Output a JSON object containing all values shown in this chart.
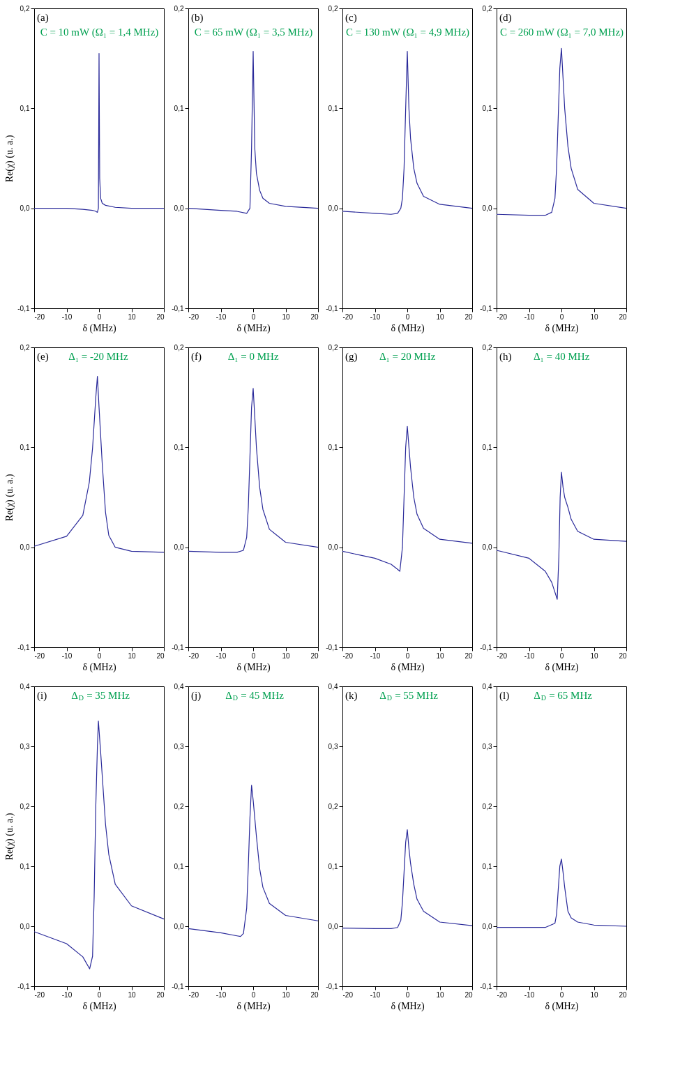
{
  "chart_data": [
    {
      "type": "line",
      "annotations": [
        "(a)",
        "C = 10 mW (Ω₁ = 1,4 MHz)"
      ],
      "xlabel": "δ (MHz)",
      "ylabel": "Re(χ) (u. a.)",
      "xlim": [
        -20,
        20
      ],
      "xticks": [
        -20,
        -10,
        0,
        10,
        20
      ],
      "ylim": [
        -0.1,
        0.2
      ],
      "yticks": [
        {
          "value": -0.1,
          "label": "-0,1"
        },
        {
          "value": 0.0,
          "label": "0,0"
        },
        {
          "value": 0.1,
          "label": "0,1"
        },
        {
          "value": 0.2,
          "label": "0,2"
        }
      ],
      "x": [
        -20,
        -10,
        -5,
        -2,
        -1,
        -0.5,
        -0.2,
        0,
        0.2,
        0.5,
        1,
        2,
        5,
        10,
        20
      ],
      "series": [
        {
          "color": "#2a2a9a",
          "values": [
            0,
            0,
            -0.001,
            -0.002,
            -0.003,
            -0.004,
            0.0,
            0.155,
            0.03,
            0.01,
            0.005,
            0.003,
            0.001,
            0,
            0
          ]
        }
      ]
    },
    {
      "type": "line",
      "annotations": [
        "(b)",
        "C = 65 mW (Ω₁ = 3,5 MHz)"
      ],
      "xlabel": "δ (MHz)",
      "xlim": [
        -20,
        20
      ],
      "xticks": [
        -20,
        -10,
        0,
        10,
        20
      ],
      "ylim": [
        -0.1,
        0.2
      ],
      "yticks": [
        {
          "value": -0.1,
          "label": "-0,1"
        },
        {
          "value": 0.0,
          "label": "0,0"
        },
        {
          "value": 0.1,
          "label": "0,1"
        },
        {
          "value": 0.2,
          "label": "0,2"
        }
      ],
      "x": [
        -20,
        -10,
        -5,
        -2,
        -1,
        -0.5,
        0,
        0.5,
        1,
        2,
        3,
        5,
        10,
        20
      ],
      "series": [
        {
          "color": "#2a2a9a",
          "values": [
            0,
            -0.002,
            -0.003,
            -0.005,
            0.0,
            0.06,
            0.157,
            0.06,
            0.035,
            0.018,
            0.01,
            0.005,
            0.002,
            0
          ]
        }
      ]
    },
    {
      "type": "line",
      "annotations": [
        "(c)",
        "C = 130 mW (Ω₁ = 4,9 MHz)"
      ],
      "xlabel": "δ (MHz)",
      "xlim": [
        -20,
        20
      ],
      "xticks": [
        -20,
        -10,
        0,
        10,
        20
      ],
      "ylim": [
        -0.1,
        0.2
      ],
      "yticks": [
        {
          "value": -0.1,
          "label": "-0,1"
        },
        {
          "value": 0.0,
          "label": "0,0"
        },
        {
          "value": 0.1,
          "label": "0,1"
        },
        {
          "value": 0.2,
          "label": "0,2"
        }
      ],
      "x": [
        -20,
        -10,
        -5,
        -3,
        -2,
        -1.5,
        -1,
        -0.5,
        0,
        0.5,
        1,
        2,
        3,
        5,
        10,
        20
      ],
      "series": [
        {
          "color": "#2a2a9a",
          "values": [
            -0.003,
            -0.005,
            -0.006,
            -0.005,
            0.0,
            0.01,
            0.04,
            0.1,
            0.157,
            0.1,
            0.07,
            0.04,
            0.025,
            0.012,
            0.004,
            0.0
          ]
        }
      ]
    },
    {
      "type": "line",
      "annotations": [
        "(d)",
        "C = 260 mW (Ω₁ = 7,0 MHz)"
      ],
      "xlabel": "δ (MHz)",
      "xlim": [
        -20,
        20
      ],
      "xticks": [
        -20,
        -10,
        0,
        10,
        20
      ],
      "ylim": [
        -0.1,
        0.2
      ],
      "yticks": [
        {
          "value": -0.1,
          "label": "-0,1"
        },
        {
          "value": 0.0,
          "label": "0,0"
        },
        {
          "value": 0.1,
          "label": "0,1"
        },
        {
          "value": 0.2,
          "label": "0,2"
        }
      ],
      "x": [
        -20,
        -10,
        -5,
        -3,
        -2,
        -1.5,
        -1,
        -0.5,
        0,
        0.5,
        1,
        2,
        3,
        5,
        10,
        20
      ],
      "series": [
        {
          "color": "#2a2a9a",
          "values": [
            -0.006,
            -0.007,
            -0.007,
            -0.004,
            0.01,
            0.04,
            0.09,
            0.14,
            0.16,
            0.13,
            0.1,
            0.062,
            0.04,
            0.019,
            0.005,
            0.0
          ]
        }
      ]
    },
    {
      "type": "line",
      "annotations": [
        "(e)",
        "Δ₁ = -20 MHz"
      ],
      "xlabel": "δ (MHz)",
      "ylabel": "Re(χ) (u. a.)",
      "xlim": [
        -20,
        20
      ],
      "xticks": [
        -20,
        -10,
        0,
        10,
        20
      ],
      "ylim": [
        -0.1,
        0.2
      ],
      "yticks": [
        {
          "value": -0.1,
          "label": "-0,1"
        },
        {
          "value": 0.0,
          "label": "0,0"
        },
        {
          "value": 0.1,
          "label": "0,1"
        },
        {
          "value": 0.2,
          "label": "0,2"
        }
      ],
      "x": [
        -20,
        -10,
        -5,
        -3,
        -2,
        -1,
        -0.5,
        0,
        1,
        2,
        3,
        5,
        10,
        20
      ],
      "series": [
        {
          "color": "#2a2a9a",
          "values": [
            0.001,
            0.011,
            0.032,
            0.065,
            0.099,
            0.15,
            0.171,
            0.14,
            0.083,
            0.035,
            0.012,
            0.0,
            -0.004,
            -0.005
          ]
        }
      ]
    },
    {
      "type": "line",
      "annotations": [
        "(f)",
        "Δ₁ = 0 MHz"
      ],
      "xlabel": "δ (MHz)",
      "xlim": [
        -20,
        20
      ],
      "xticks": [
        -20,
        -10,
        0,
        10,
        20
      ],
      "ylim": [
        -0.1,
        0.2
      ],
      "yticks": [
        {
          "value": -0.1,
          "label": "-0,1"
        },
        {
          "value": 0.0,
          "label": "0,0"
        },
        {
          "value": 0.1,
          "label": "0,1"
        },
        {
          "value": 0.2,
          "label": "0,2"
        }
      ],
      "x": [
        -20,
        -10,
        -5,
        -3,
        -2,
        -1.5,
        -1,
        -0.5,
        0,
        0.5,
        1,
        2,
        3,
        5,
        10,
        20
      ],
      "series": [
        {
          "color": "#2a2a9a",
          "values": [
            -0.004,
            -0.005,
            -0.005,
            -0.003,
            0.01,
            0.04,
            0.09,
            0.14,
            0.159,
            0.13,
            0.1,
            0.06,
            0.038,
            0.018,
            0.005,
            0.0
          ]
        }
      ]
    },
    {
      "type": "line",
      "annotations": [
        "(g)",
        "Δ₁ = 20 MHz"
      ],
      "xlabel": "δ (MHz)",
      "xlim": [
        -20,
        20
      ],
      "xticks": [
        -20,
        -10,
        0,
        10,
        20
      ],
      "ylim": [
        -0.1,
        0.2
      ],
      "yticks": [
        {
          "value": -0.1,
          "label": "-0,1"
        },
        {
          "value": 0.0,
          "label": "0,0"
        },
        {
          "value": 0.1,
          "label": "0,1"
        },
        {
          "value": 0.2,
          "label": "0,2"
        }
      ],
      "x": [
        -20,
        -10,
        -5,
        -3,
        -2.3,
        -1.5,
        -1,
        -0.5,
        0,
        1,
        2,
        3,
        5,
        10,
        20
      ],
      "series": [
        {
          "color": "#2a2a9a",
          "values": [
            -0.004,
            -0.011,
            -0.017,
            -0.022,
            -0.024,
            0.0,
            0.05,
            0.1,
            0.121,
            0.08,
            0.05,
            0.033,
            0.019,
            0.008,
            0.004
          ]
        }
      ]
    },
    {
      "type": "line",
      "annotations": [
        "(h)",
        "Δ₁ = 40 MHz"
      ],
      "xlabel": "δ (MHz)",
      "xlim": [
        -20,
        20
      ],
      "xticks": [
        -20,
        -10,
        0,
        10,
        20
      ],
      "ylim": [
        -0.1,
        0.2
      ],
      "yticks": [
        {
          "value": -0.1,
          "label": "-0,1"
        },
        {
          "value": 0.0,
          "label": "0,0"
        },
        {
          "value": 0.1,
          "label": "0,1"
        },
        {
          "value": 0.2,
          "label": "0,2"
        }
      ],
      "x": [
        -20,
        -10,
        -5,
        -3,
        -2,
        -1.3,
        -0.8,
        -0.4,
        0,
        0.5,
        1,
        2,
        3,
        5,
        10,
        20
      ],
      "series": [
        {
          "color": "#2a2a9a",
          "values": [
            -0.003,
            -0.011,
            -0.024,
            -0.035,
            -0.045,
            -0.052,
            -0.01,
            0.05,
            0.075,
            0.06,
            0.05,
            0.04,
            0.028,
            0.016,
            0.008,
            0.006
          ]
        }
      ]
    },
    {
      "type": "line",
      "annotations": [
        "(i)",
        "Δ$_{D}$ = 35 MHz"
      ],
      "xlabel": "δ (MHz)",
      "ylabel": "Re(χ) (u. a.)",
      "xlim": [
        -20,
        20
      ],
      "xticks": [
        -20,
        -10,
        0,
        10,
        20
      ],
      "ylim": [
        -0.1,
        0.4
      ],
      "yticks": [
        {
          "value": -0.1,
          "label": "-0,1"
        },
        {
          "value": 0.0,
          "label": "0,0"
        },
        {
          "value": 0.1,
          "label": "0,1"
        },
        {
          "value": 0.2,
          "label": "0,2"
        },
        {
          "value": 0.3,
          "label": "0,3"
        },
        {
          "value": 0.4,
          "label": "0,4"
        }
      ],
      "x": [
        -20,
        -10,
        -5,
        -2.9,
        -2,
        -1.5,
        -1,
        -0.5,
        -0.2,
        0.5,
        1,
        2,
        3,
        5,
        10,
        20
      ],
      "series": [
        {
          "color": "#2a2a9a",
          "values": [
            -0.009,
            -0.029,
            -0.051,
            -0.071,
            -0.05,
            0.05,
            0.2,
            0.3,
            0.342,
            0.29,
            0.25,
            0.17,
            0.12,
            0.07,
            0.034,
            0.012
          ]
        }
      ]
    },
    {
      "type": "line",
      "annotations": [
        "(j)",
        "Δ$_{D}$ = 45 MHz"
      ],
      "xlabel": "δ (MHz)",
      "xlim": [
        -20,
        20
      ],
      "xticks": [
        -20,
        -10,
        0,
        10,
        20
      ],
      "ylim": [
        -0.1,
        0.4
      ],
      "yticks": [
        {
          "value": -0.1,
          "label": "-0,1"
        },
        {
          "value": 0.0,
          "label": "0,0"
        },
        {
          "value": 0.1,
          "label": "0,1"
        },
        {
          "value": 0.2,
          "label": "0,2"
        },
        {
          "value": 0.3,
          "label": "0,3"
        },
        {
          "value": 0.4,
          "label": "0,4"
        }
      ],
      "x": [
        -20,
        -10,
        -5,
        -3.9,
        -3,
        -2,
        -1.5,
        -1,
        -0.5,
        0,
        1,
        2,
        3,
        5,
        10,
        20
      ],
      "series": [
        {
          "color": "#2a2a9a",
          "values": [
            -0.004,
            -0.011,
            -0.016,
            -0.017,
            -0.012,
            0.03,
            0.1,
            0.18,
            0.235,
            0.21,
            0.15,
            0.096,
            0.065,
            0.038,
            0.018,
            0.009
          ]
        }
      ]
    },
    {
      "type": "line",
      "annotations": [
        "(k)",
        "Δ$_{D}$ = 55 MHz"
      ],
      "xlabel": "δ (MHz)",
      "xlim": [
        -20,
        20
      ],
      "xticks": [
        -20,
        -10,
        0,
        10,
        20
      ],
      "ylim": [
        -0.1,
        0.4
      ],
      "yticks": [
        {
          "value": -0.1,
          "label": "-0,1"
        },
        {
          "value": 0.0,
          "label": "0,0"
        },
        {
          "value": 0.1,
          "label": "0,1"
        },
        {
          "value": 0.2,
          "label": "0,2"
        },
        {
          "value": 0.3,
          "label": "0,3"
        },
        {
          "value": 0.4,
          "label": "0,4"
        }
      ],
      "x": [
        -20,
        -10,
        -5,
        -3,
        -2,
        -1.5,
        -1,
        -0.5,
        0,
        0.5,
        1,
        2,
        3,
        5,
        10,
        20
      ],
      "series": [
        {
          "color": "#2a2a9a",
          "values": [
            -0.003,
            -0.004,
            -0.004,
            -0.002,
            0.01,
            0.04,
            0.09,
            0.14,
            0.161,
            0.13,
            0.105,
            0.07,
            0.045,
            0.025,
            0.007,
            0.001
          ]
        }
      ]
    },
    {
      "type": "line",
      "annotations": [
        "(l)",
        "Δ$_{D}$ = 65 MHz"
      ],
      "xlabel": "δ (MHz)",
      "xlim": [
        -20,
        20
      ],
      "xticks": [
        -20,
        -10,
        0,
        10,
        20
      ],
      "ylim": [
        -0.1,
        0.4
      ],
      "yticks": [
        {
          "value": -0.1,
          "label": "-0,1"
        },
        {
          "value": 0.0,
          "label": "0,0"
        },
        {
          "value": 0.1,
          "label": "0,1"
        },
        {
          "value": 0.2,
          "label": "0,2"
        },
        {
          "value": 0.3,
          "label": "0,3"
        },
        {
          "value": 0.4,
          "label": "0,4"
        }
      ],
      "x": [
        -20,
        -10,
        -5,
        -2,
        -1.5,
        -1,
        -0.5,
        0,
        0.5,
        1,
        2,
        3,
        5,
        10,
        20
      ],
      "series": [
        {
          "color": "#2a2a9a",
          "values": [
            -0.002,
            -0.002,
            -0.002,
            0.005,
            0.02,
            0.06,
            0.1,
            0.112,
            0.09,
            0.065,
            0.025,
            0.014,
            0.007,
            0.002,
            0.0
          ]
        }
      ]
    }
  ]
}
